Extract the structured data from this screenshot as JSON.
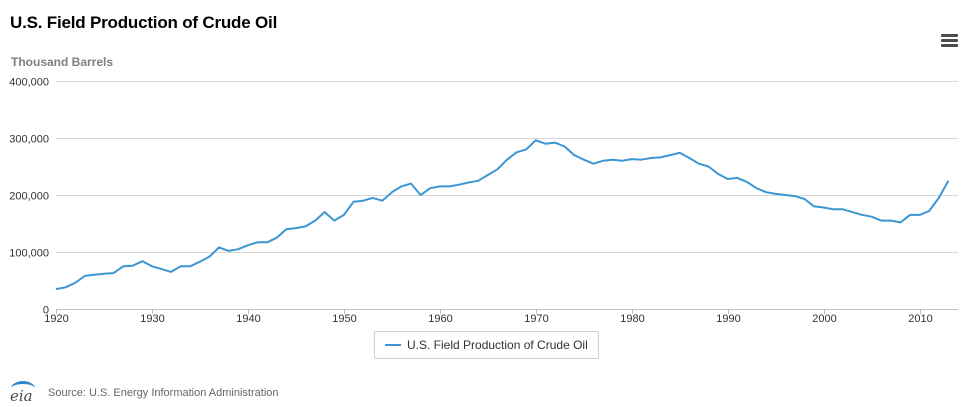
{
  "header": {
    "title": "U.S. Field Production of Crude Oil",
    "unit_label": "Thousand Barrels"
  },
  "menu": {
    "icon": "hamburger-menu-icon"
  },
  "legend": {
    "label": "U.S. Field Production of Crude Oil",
    "color": "#3d96d4"
  },
  "footer": {
    "source": "Source: U.S. Energy Information Administration",
    "logo_text": "eia"
  },
  "chart_data": {
    "type": "line",
    "title": "U.S. Field Production of Crude Oil",
    "ylabel": "Thousand Barrels",
    "xlabel": "",
    "xlim": [
      1920,
      2014
    ],
    "ylim": [
      0,
      400000
    ],
    "xticks": [
      1920,
      1930,
      1940,
      1950,
      1960,
      1970,
      1980,
      1990,
      2000,
      2010
    ],
    "xtick_labels": [
      "1920",
      "1930",
      "1940",
      "1950",
      "1960",
      "1970",
      "1980",
      "1990",
      "2000",
      "2010"
    ],
    "yticks": [
      0,
      100000,
      200000,
      300000,
      400000
    ],
    "ytick_labels": [
      "0",
      "100,000",
      "200,000",
      "300,000",
      "400,000"
    ],
    "grid": true,
    "legend_position": "bottom-center",
    "series": [
      {
        "name": "U.S. Field Production of Crude Oil",
        "color": "#3d96d4",
        "x": [
          1920,
          1921,
          1922,
          1923,
          1924,
          1925,
          1926,
          1927,
          1928,
          1929,
          1930,
          1931,
          1932,
          1933,
          1934,
          1935,
          1936,
          1937,
          1938,
          1939,
          1940,
          1941,
          1942,
          1943,
          1944,
          1945,
          1946,
          1947,
          1948,
          1949,
          1950,
          1951,
          1952,
          1953,
          1954,
          1955,
          1956,
          1957,
          1958,
          1959,
          1960,
          1961,
          1962,
          1963,
          1964,
          1965,
          1966,
          1967,
          1968,
          1969,
          1970,
          1971,
          1972,
          1973,
          1974,
          1975,
          1976,
          1977,
          1978,
          1979,
          1980,
          1981,
          1982,
          1983,
          1984,
          1985,
          1986,
          1987,
          1988,
          1989,
          1990,
          1991,
          1992,
          1993,
          1994,
          1995,
          1996,
          1997,
          1998,
          1999,
          2000,
          2001,
          2002,
          2003,
          2004,
          2005,
          2006,
          2007,
          2008,
          2009,
          2010,
          2011,
          2012,
          2013
        ],
        "y": [
          35000,
          38000,
          46000,
          58000,
          60000,
          62000,
          63000,
          75000,
          76000,
          84000,
          75000,
          70000,
          65000,
          75000,
          75000,
          83000,
          92000,
          108000,
          102000,
          105000,
          112000,
          117000,
          117000,
          125000,
          140000,
          142000,
          145000,
          155000,
          170000,
          155000,
          165000,
          188000,
          190000,
          195000,
          190000,
          205000,
          215000,
          220000,
          200000,
          212000,
          215000,
          215000,
          218000,
          222000,
          225000,
          235000,
          245000,
          262000,
          275000,
          280000,
          296000,
          290000,
          292000,
          285000,
          270000,
          262000,
          255000,
          260000,
          262000,
          260000,
          263000,
          262000,
          265000,
          266000,
          270000,
          274000,
          265000,
          255000,
          250000,
          237000,
          228000,
          230000,
          223000,
          212000,
          205000,
          202000,
          200000,
          198000,
          193000,
          180000,
          178000,
          175000,
          175000,
          170000,
          165000,
          162000,
          155000,
          155000,
          152000,
          165000,
          165000,
          172000,
          195000,
          225000
        ]
      }
    ]
  }
}
